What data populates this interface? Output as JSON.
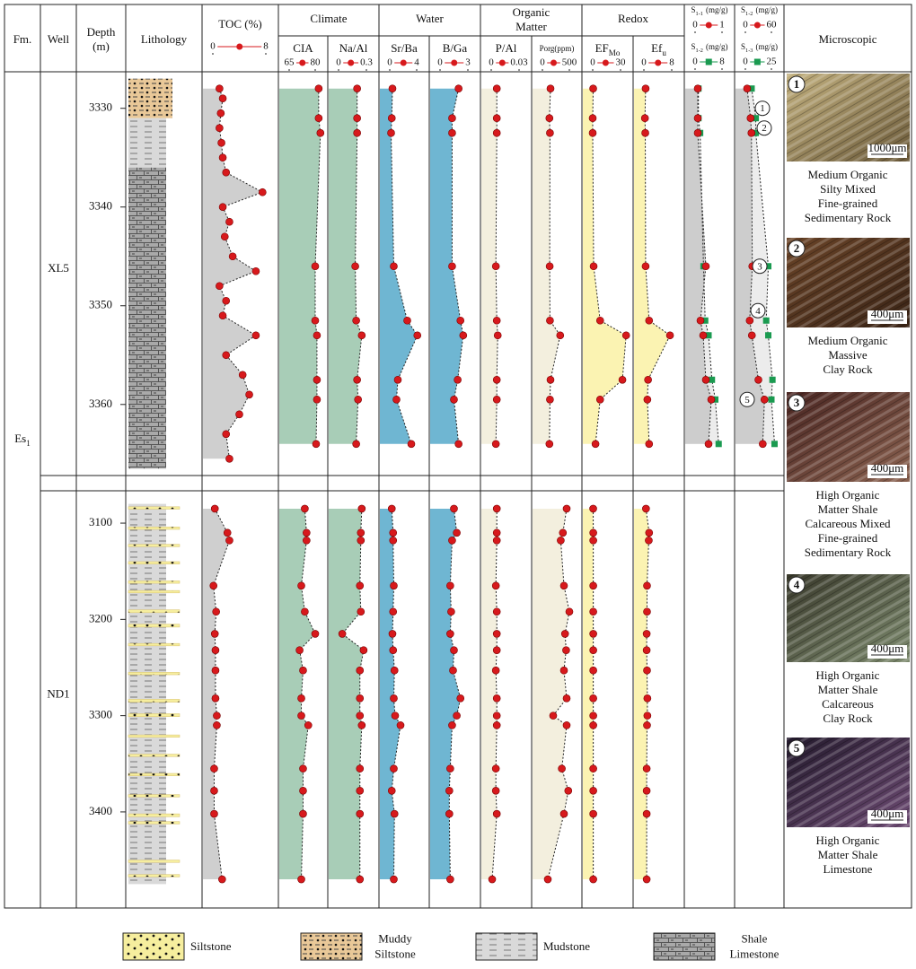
{
  "header": {
    "fm": "Fm.",
    "well": "Well",
    "depth": [
      "Depth",
      "(m)"
    ],
    "lithology": "Lithology",
    "toc": "TOC (%)",
    "microscopic": "Microscopic"
  },
  "formation": {
    "label": "Es",
    "sub": "1"
  },
  "groups": [
    {
      "title": [
        "Climate"
      ]
    },
    {
      "title": [
        "Water"
      ]
    },
    {
      "title": [
        "Organic",
        "Matter"
      ]
    },
    {
      "title": [
        "Redox"
      ]
    }
  ],
  "toc_axis": {
    "xlim": [
      0,
      8
    ],
    "xticks": [
      0,
      8
    ]
  },
  "tracks": [
    {
      "label": "CIA",
      "xlim": [
        65,
        80
      ],
      "xticks": [
        65,
        80
      ]
    },
    {
      "label": "Na/Al",
      "xlim": [
        0,
        0.3
      ],
      "xticks": [
        0,
        0.3
      ]
    },
    {
      "label": "Sr/Ba",
      "xlim": [
        0,
        4
      ],
      "xticks": [
        0,
        4
      ]
    },
    {
      "label": "B/Ga",
      "xlim": [
        0,
        3
      ],
      "xticks": [
        0,
        3
      ]
    },
    {
      "label": "P/Al",
      "xlim": [
        0,
        0.03
      ],
      "xticks": [
        0,
        0.03
      ]
    },
    {
      "label": "Porg(ppm)",
      "xlim": [
        0,
        500
      ],
      "xticks": [
        0,
        500
      ]
    },
    {
      "label": "EF",
      "sub": "Mo",
      "xlim": [
        0,
        30
      ],
      "xticks": [
        0,
        30
      ]
    },
    {
      "label": "Ef",
      "sub": "u",
      "xlim": [
        0,
        8
      ],
      "xticks": [
        0,
        8
      ]
    }
  ],
  "s_tracks": [
    {
      "axes": [
        {
          "label": "S",
          "sub": "1-1",
          "unit": "(mg/g)",
          "xlim": [
            0,
            1
          ],
          "xticks": [
            0,
            1
          ],
          "color": "#d7191c"
        },
        {
          "label": "S",
          "sub": "1-2",
          "unit": "(mg/g)",
          "xlim": [
            0,
            8
          ],
          "xticks": [
            0,
            8
          ],
          "color": "#1a9a50"
        }
      ]
    },
    {
      "axes": [
        {
          "label": "S",
          "sub": "1-2",
          "unit": "(mg/g)",
          "xlim": [
            0,
            60
          ],
          "xticks": [
            0,
            60
          ],
          "color": "#d7191c"
        },
        {
          "label": "S",
          "sub": "1-3",
          "unit": "(mg/g)",
          "xlim": [
            0,
            25
          ],
          "xticks": [
            0,
            25
          ],
          "color": "#1a9a50"
        }
      ]
    }
  ],
  "wells": [
    {
      "name": "XL5",
      "ylim": [
        3326.3,
        3367.2
      ],
      "yticks": [
        3330,
        3340,
        3350,
        3360
      ],
      "lithology": [
        {
          "top": 3327,
          "base": 3331,
          "rock": 1
        },
        {
          "top": 3331,
          "base": 3336,
          "rock": 2
        },
        {
          "top": 3336,
          "base": 3366.5,
          "rock": 3
        }
      ],
      "toc_depths": [
        3328,
        3329,
        3330.5,
        3332,
        3333.5,
        3335,
        3336.5,
        3338.5,
        3340,
        3341.5,
        3343,
        3345,
        3346.5,
        3348,
        3349.5,
        3351,
        3353,
        3355,
        3357,
        3359,
        3361,
        3363,
        3365.5
      ],
      "toc": [
        1.0,
        1.5,
        1.2,
        1.0,
        1.3,
        1.5,
        2.0,
        7.5,
        1.5,
        2.5,
        1.8,
        3.0,
        6.5,
        1.0,
        2.0,
        1.5,
        6.5,
        2.0,
        4.5,
        5.5,
        4.0,
        2.0,
        2.5
      ],
      "depths": [
        3328,
        3331,
        3332.5,
        3346,
        3351.5,
        3353,
        3357.5,
        3359.5,
        3364
      ],
      "values": [
        [
          82,
          82,
          83,
          80,
          80,
          81,
          81,
          81,
          80.5
        ],
        [
          0.2,
          0.2,
          0.2,
          0.18,
          0.19,
          0.25,
          0.2,
          0.21,
          0.19
        ],
        [
          0.4,
          0.3,
          0.2,
          0.6,
          2.6,
          4.1,
          1.2,
          1.0,
          3.2
        ],
        [
          2.0,
          1.3,
          1.3,
          1.3,
          2.2,
          2.5,
          1.9,
          1.5,
          2.0
        ],
        [
          0.006,
          0.006,
          0.006,
          0.005,
          0.006,
          0.007,
          0.006,
          0.006,
          0.005
        ],
        [
          150,
          130,
          140,
          135,
          140,
          330,
          150,
          140,
          130
        ],
        [
          0.5,
          0,
          0,
          1,
          8,
          36,
          32,
          8,
          3
        ],
        [
          0.5,
          0.3,
          0.4,
          0.5,
          1.5,
          7.5,
          1.2,
          1.0,
          1.5
        ]
      ],
      "s_values": [
        [
          [
            0.1,
            0.1,
            0.1,
            0.4,
            0.2,
            0.3,
            0.4,
            0.6,
            0.5
          ],
          [
            1,
            1,
            1.5,
            2.5,
            3,
            4,
            5,
            6,
            7
          ]
        ],
        [
          [
            4,
            12,
            14,
            16,
            10,
            15,
            30,
            44,
            40
          ],
          [
            6,
            10,
            10,
            22,
            20,
            22,
            26,
            25,
            28
          ]
        ]
      ],
      "markers": [
        {
          "label": "1",
          "depth": 3330
        },
        {
          "label": "2",
          "depth": 3332
        },
        {
          "label": "3",
          "depth": 3346
        },
        {
          "label": "4",
          "depth": 3350.5
        },
        {
          "label": "5",
          "depth": 3359.5
        }
      ]
    },
    {
      "name": "ND1",
      "ylim": [
        3066.4,
        3499.8
      ],
      "yticks": [
        3100,
        3200,
        3300,
        3400
      ],
      "lithology": [
        {
          "top": 3080,
          "base": 3475,
          "rock": 2
        },
        {
          "top": 3083,
          "base": 3085.5,
          "rock": 0
        },
        {
          "top": 3104,
          "base": 3106.5,
          "rock": 0
        },
        {
          "top": 3122,
          "base": 3124.5,
          "rock": 0
        },
        {
          "top": 3140,
          "base": 3142.5,
          "rock": 0
        },
        {
          "top": 3160,
          "base": 3162.5,
          "rock": 0
        },
        {
          "top": 3170,
          "base": 3172.5,
          "rock": 0
        },
        {
          "top": 3190,
          "base": 3193,
          "rock": 0
        },
        {
          "top": 3205,
          "base": 3208,
          "rock": 0
        },
        {
          "top": 3225,
          "base": 3227.5,
          "rock": 0
        },
        {
          "top": 3255,
          "base": 3257.5,
          "rock": 0
        },
        {
          "top": 3283,
          "base": 3286,
          "rock": 0
        },
        {
          "top": 3298,
          "base": 3301,
          "rock": 0
        },
        {
          "top": 3320,
          "base": 3322.5,
          "rock": 0
        },
        {
          "top": 3340,
          "base": 3342.5,
          "rock": 0
        },
        {
          "top": 3360,
          "base": 3362.5,
          "rock": 0
        },
        {
          "top": 3382,
          "base": 3384.5,
          "rock": 0
        },
        {
          "top": 3402,
          "base": 3405,
          "rock": 0
        },
        {
          "top": 3410,
          "base": 3412.5,
          "rock": 0
        },
        {
          "top": 3450,
          "base": 3452.5,
          "rock": 0
        },
        {
          "top": 3465,
          "base": 3467.5,
          "rock": 0
        }
      ],
      "toc_depths": [
        3085,
        3110,
        3118,
        3165,
        3192,
        3215,
        3232,
        3253,
        3282,
        3300,
        3310,
        3355,
        3378,
        3402,
        3470
      ],
      "toc": [
        0.3,
        2.2,
        2.5,
        0.1,
        0.5,
        0.3,
        0.4,
        0.4,
        0.4,
        0.6,
        0.6,
        0.2,
        0.2,
        0.2,
        1.4
      ],
      "depths": [
        3085,
        3110,
        3118,
        3165,
        3192,
        3215,
        3232,
        3253,
        3282,
        3300,
        3310,
        3355,
        3378,
        3402,
        3470
      ],
      "values": [
        [
          74,
          75,
          75,
          72,
          74,
          80,
          71,
          73,
          72,
          72,
          76,
          73,
          73,
          73,
          72
        ],
        [
          0.25,
          0.24,
          0.24,
          0.23,
          0.24,
          0.04,
          0.27,
          0.23,
          0.23,
          0.23,
          0.25,
          0.23,
          0.23,
          0.23,
          0.23
        ],
        [
          0.3,
          0.5,
          0.5,
          0.6,
          0.5,
          0.4,
          0.5,
          0.7,
          0.6,
          0.8,
          1.6,
          0.6,
          0.3,
          0.7,
          0.6
        ],
        [
          1.5,
          1.8,
          1.3,
          1.1,
          1.2,
          1.1,
          1.5,
          1.4,
          2.2,
          1.8,
          1.3,
          1.1,
          1.0,
          1.0,
          1.1
        ],
        [
          0.006,
          0.006,
          0.006,
          0.005,
          0.006,
          0.006,
          0.006,
          0.005,
          0.006,
          0.006,
          0.006,
          0.005,
          0.005,
          0.006,
          0.001
        ],
        [
          450,
          380,
          340,
          400,
          500,
          420,
          440,
          400,
          450,
          200,
          450,
          360,
          480,
          400,
          100
        ],
        [
          0.5,
          0.6,
          0.6,
          0.6,
          0.6,
          0.6,
          0.6,
          0.6,
          0.6,
          0.6,
          0.6,
          0.6,
          0.6,
          0.6,
          0.6
        ],
        [
          0.6,
          1.5,
          1.4,
          0.9,
          0.9,
          0.8,
          0.8,
          0.9,
          1.0,
          1.0,
          0.9,
          0.8,
          0.8,
          0.8,
          0.8
        ]
      ]
    }
  ],
  "microscopic": [
    {
      "number": "1",
      "scale": "1000μm",
      "caption": [
        "Medium Organic",
        "Silty Mixed",
        "Fine-grained",
        "Sedimentary Rock"
      ]
    },
    {
      "number": "2",
      "scale": "400μm",
      "caption": [
        "Medium Organic",
        "Massive",
        "Clay Rock"
      ]
    },
    {
      "number": "3",
      "scale": "400μm",
      "caption": [
        "High Organic",
        "Matter Shale",
        "Calcareous Mixed",
        "Fine-grained",
        "Sedimentary Rock"
      ]
    },
    {
      "number": "4",
      "scale": "400μm",
      "caption": [
        "High Organic",
        "Matter Shale",
        "Calcareous",
        "Clay Rock"
      ]
    },
    {
      "number": "5",
      "scale": "400μm",
      "caption": [
        "High Organic",
        "Matter Shale",
        "Limestone"
      ]
    }
  ],
  "legend": [
    {
      "label": [
        "Siltstone"
      ]
    },
    {
      "label": [
        "Muddy",
        "Siltstone"
      ]
    },
    {
      "label": [
        "Mudstone"
      ]
    },
    {
      "label": [
        "Shale",
        "Limestone"
      ]
    }
  ]
}
